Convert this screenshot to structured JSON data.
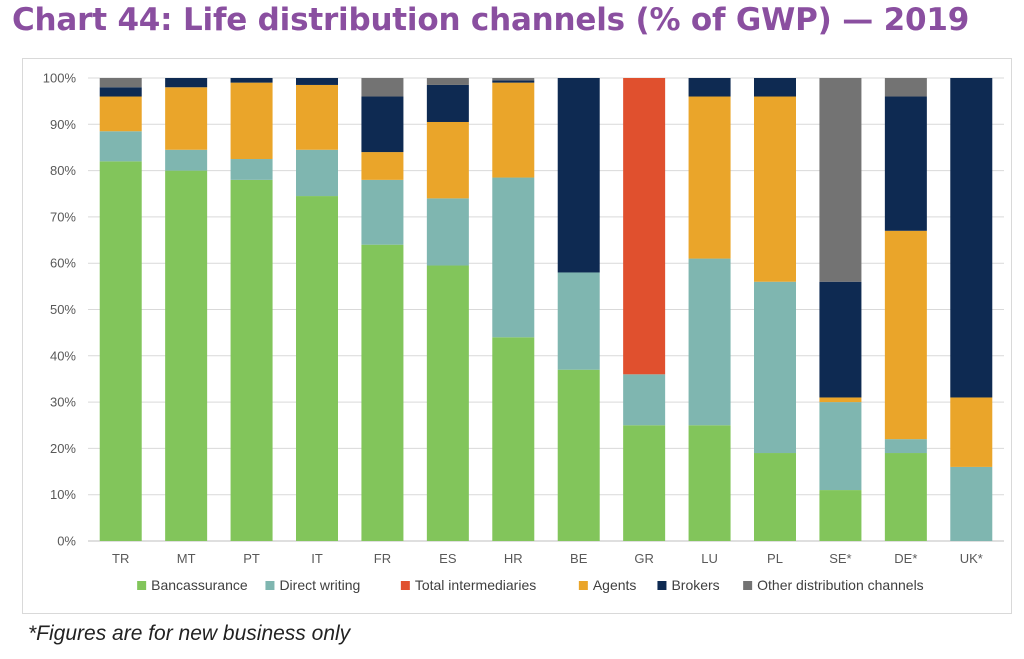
{
  "title": "Chart 44: Life distribution channels (% of GWP) — 2019",
  "footnote": "*Figures are for new business only",
  "chart_data": {
    "type": "bar",
    "stacked": true,
    "categories": [
      "TR",
      "MT",
      "PT",
      "IT",
      "FR",
      "ES",
      "HR",
      "BE",
      "GR",
      "LU",
      "PL",
      "SE*",
      "DE*",
      "UK*"
    ],
    "series": [
      {
        "name": "Bancassurance",
        "color": "#82c55b",
        "values": [
          82,
          80,
          78,
          74.5,
          64,
          59.5,
          44,
          37,
          25,
          25,
          19,
          11,
          19,
          0
        ]
      },
      {
        "name": "Direct writing",
        "color": "#7fb6b0",
        "values": [
          6.5,
          4.5,
          4.5,
          10,
          14,
          14.5,
          34.5,
          21,
          11,
          36,
          37,
          19,
          3,
          16
        ]
      },
      {
        "name": "Total intermediaries",
        "color": "#e0502e",
        "values": [
          0,
          0,
          0,
          0,
          0,
          0,
          0,
          0,
          64,
          0,
          0,
          0,
          0,
          0
        ]
      },
      {
        "name": "Agents",
        "color": "#eaa52a",
        "values": [
          7.5,
          13.5,
          16.5,
          14,
          6,
          16.5,
          20.5,
          0,
          0,
          35,
          40,
          1,
          45,
          15
        ]
      },
      {
        "name": "Brokers",
        "color": "#0e2a52",
        "values": [
          2,
          2,
          1,
          1.5,
          12,
          8,
          0.5,
          42,
          0,
          4,
          4,
          25,
          29,
          69
        ]
      },
      {
        "name": "Other distribution channels",
        "color": "#737373",
        "values": [
          2,
          0,
          0,
          0,
          4,
          1.5,
          0.5,
          0,
          0,
          0,
          0,
          44,
          4,
          0
        ]
      }
    ],
    "ylim": [
      0,
      100
    ],
    "ytick_labels": [
      "0%",
      "10%",
      "20%",
      "30%",
      "40%",
      "50%",
      "60%",
      "70%",
      "80%",
      "90%",
      "100%"
    ],
    "grid": true,
    "legend_position": "bottom"
  }
}
